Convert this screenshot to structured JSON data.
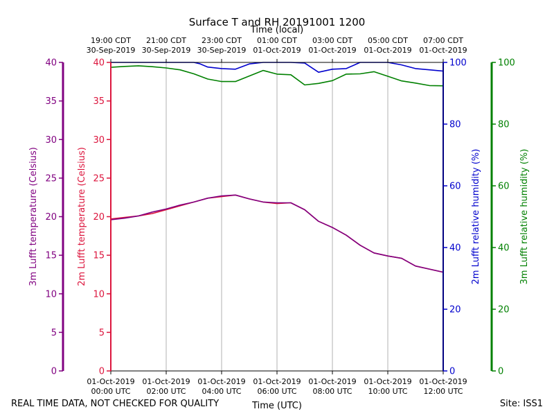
{
  "chart_data": {
    "type": "line",
    "title": "Surface T and RH 20191001 1200",
    "top_xlabel": "Time (local)",
    "bottom_xlabel": "Time (UTC)",
    "x_range_hours_utc": [
      0,
      12
    ],
    "top_ticks": [
      {
        "hour": 0,
        "line1": "19:00 CDT",
        "line2": "30-Sep-2019"
      },
      {
        "hour": 2,
        "line1": "21:00 CDT",
        "line2": "30-Sep-2019"
      },
      {
        "hour": 4,
        "line1": "23:00 CDT",
        "line2": "30-Sep-2019"
      },
      {
        "hour": 6,
        "line1": "01:00 CDT",
        "line2": "01-Oct-2019"
      },
      {
        "hour": 8,
        "line1": "03:00 CDT",
        "line2": "01-Oct-2019"
      },
      {
        "hour": 10,
        "line1": "05:00 CDT",
        "line2": "01-Oct-2019"
      },
      {
        "hour": 12,
        "line1": "07:00 CDT",
        "line2": "01-Oct-2019"
      }
    ],
    "bottom_ticks": [
      {
        "hour": 0,
        "line1": "01-Oct-2019",
        "line2": "00:00 UTC"
      },
      {
        "hour": 2,
        "line1": "01-Oct-2019",
        "line2": "02:00 UTC"
      },
      {
        "hour": 4,
        "line1": "01-Oct-2019",
        "line2": "04:00 UTC"
      },
      {
        "hour": 6,
        "line1": "01-Oct-2019",
        "line2": "06:00 UTC"
      },
      {
        "hour": 8,
        "line1": "01-Oct-2019",
        "line2": "08:00 UTC"
      },
      {
        "hour": 10,
        "line1": "01-Oct-2019",
        "line2": "10:00 UTC"
      },
      {
        "hour": 12,
        "line1": "01-Oct-2019",
        "line2": "12:00 UTC"
      }
    ],
    "axes": {
      "temp3m": {
        "label": "3m Lufft temperature (Celsius)",
        "color": "#800080",
        "range": [
          0,
          40
        ],
        "ticks": [
          0,
          5,
          10,
          15,
          20,
          25,
          30,
          35,
          40
        ]
      },
      "temp2m": {
        "label": "2m Lufft temperature (Celsius)",
        "color": "#dc143c",
        "range": [
          0,
          40
        ],
        "ticks": [
          0,
          5,
          10,
          15,
          20,
          25,
          30,
          35,
          40
        ]
      },
      "rh2m": {
        "label": "2m Lufft relative humidity (%)",
        "color": "#0000cd",
        "range": [
          0,
          100
        ],
        "ticks": [
          0,
          20,
          40,
          60,
          80,
          100
        ]
      },
      "rh3m": {
        "label": "3m Lufft relative humidity (%)",
        "color": "#008000",
        "range": [
          0,
          100
        ],
        "ticks": [
          0,
          20,
          40,
          60,
          80,
          100
        ]
      }
    },
    "series": [
      {
        "name": "2m temperature",
        "axis": "temp2m",
        "color": "#dc143c",
        "x": [
          0,
          0.5,
          1,
          1.5,
          2,
          2.5,
          3,
          3.5,
          4,
          4.5,
          5,
          5.5,
          6,
          6.5,
          7,
          7.5,
          8,
          8.5,
          9,
          9.5,
          10,
          10.5,
          11,
          11.5,
          12
        ],
        "values": [
          19.7,
          19.9,
          20.1,
          20.4,
          20.9,
          21.4,
          21.9,
          22.4,
          22.6,
          22.8,
          22.3,
          21.9,
          21.7,
          21.8,
          20.9,
          19.4,
          18.6,
          17.6,
          16.3,
          15.3,
          14.9,
          14.6,
          13.6,
          13.2,
          12.8
        ]
      },
      {
        "name": "3m temperature",
        "axis": "temp3m",
        "color": "#800080",
        "x": [
          0,
          0.5,
          1,
          1.5,
          2,
          2.5,
          3,
          3.5,
          4,
          4.5,
          5,
          5.5,
          6,
          6.5,
          7,
          7.5,
          8,
          8.5,
          9,
          9.5,
          10,
          10.5,
          11,
          11.5,
          12
        ],
        "values": [
          19.6,
          19.8,
          20.1,
          20.6,
          21.0,
          21.5,
          21.9,
          22.4,
          22.7,
          22.8,
          22.3,
          21.9,
          21.8,
          21.8,
          20.9,
          19.4,
          18.6,
          17.6,
          16.3,
          15.3,
          14.9,
          14.6,
          13.6,
          13.2,
          12.8
        ]
      },
      {
        "name": "2m relative humidity",
        "axis": "rh2m",
        "color": "#0000cd",
        "x": [
          0,
          0.5,
          1,
          1.5,
          2,
          2.5,
          3,
          3.2,
          3.5,
          4,
          4.5,
          5,
          5.5,
          6,
          6.5,
          7,
          7.5,
          8,
          8.5,
          9,
          9.5,
          10,
          10.5,
          11,
          11.5,
          12
        ],
        "values": [
          100,
          100,
          100,
          100,
          100,
          100,
          100,
          99.6,
          98.5,
          98.0,
          97.8,
          99.5,
          100,
          100,
          100,
          99.8,
          96.8,
          97.8,
          98.0,
          100,
          100,
          100,
          99.2,
          98.0,
          97.6,
          97.2
        ]
      },
      {
        "name": "3m relative humidity",
        "axis": "rh3m",
        "color": "#008000",
        "x": [
          0,
          0.5,
          1,
          1.5,
          2,
          2.5,
          3,
          3.5,
          4,
          4.5,
          5,
          5.5,
          6,
          6.5,
          7,
          7.5,
          8,
          8.5,
          9,
          9.5,
          10,
          10.5,
          11,
          11.5,
          12
        ],
        "values": [
          98.4,
          98.7,
          98.9,
          98.6,
          98.2,
          97.6,
          96.3,
          94.6,
          93.8,
          93.8,
          95.6,
          97.4,
          96.2,
          96.0,
          92.7,
          93.2,
          94.1,
          96.2,
          96.3,
          97.0,
          95.5,
          94.0,
          93.3,
          92.5,
          92.4
        ]
      }
    ]
  },
  "footer": {
    "disclaimer": "REAL TIME DATA, NOT CHECKED FOR QUALITY",
    "site": "Site: ISS1"
  }
}
